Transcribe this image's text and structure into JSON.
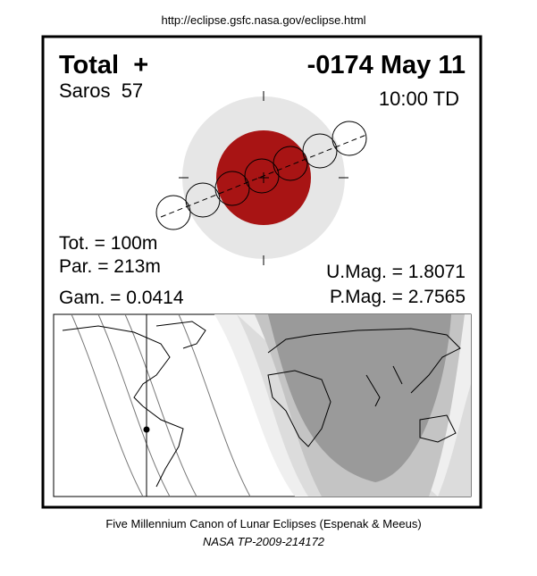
{
  "header": {
    "url": "http://eclipse.gsfc.nasa.gov/eclipse.html"
  },
  "eclipse": {
    "type": "Total  +",
    "date": "-0174 May 11",
    "saros": "Saros  57",
    "time": "10:00 TD",
    "total_duration": "Tot. = 100m",
    "partial_duration": "Par. = 213m",
    "gamma": "Gam. = 0.0414",
    "umbral_magnitude": "U.Mag. = 1.8071",
    "penumbral_magnitude": "P.Mag. = 2.7565"
  },
  "footer": {
    "canon": "Five Millennium Canon of Lunar Eclipses (Espenak & Meeus)",
    "reference": "NASA TP-2009-214172"
  }
}
